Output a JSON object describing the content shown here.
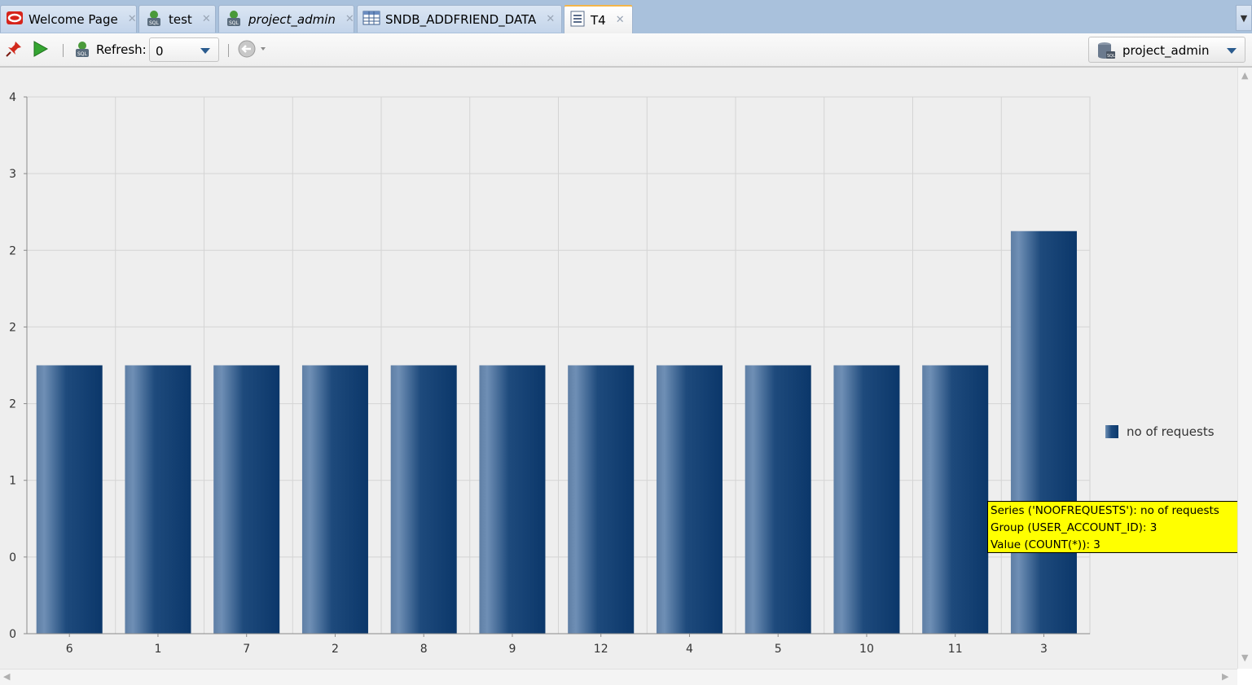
{
  "tabs": [
    {
      "label": "Welcome Page",
      "icon": "oracle-icon",
      "italic": false,
      "active": false
    },
    {
      "label": "test",
      "icon": "sql-connection-icon",
      "italic": false,
      "active": false
    },
    {
      "label": "project_admin",
      "icon": "sql-connection-icon",
      "italic": true,
      "active": false
    },
    {
      "label": "SNDB_ADDFRIEND_DATA",
      "icon": "table-grid-icon",
      "italic": false,
      "active": false
    },
    {
      "label": "T4",
      "icon": "report-icon",
      "italic": false,
      "active": true
    }
  ],
  "toolbar": {
    "refresh_label": "Refresh:",
    "refresh_value": "0",
    "connection_value": "project_admin"
  },
  "chart_data": {
    "type": "bar",
    "categories": [
      "6",
      "1",
      "7",
      "2",
      "8",
      "9",
      "12",
      "4",
      "5",
      "10",
      "11",
      "3"
    ],
    "series": [
      {
        "name": "no of requests",
        "values": [
          2,
          2,
          2,
          2,
          2,
          2,
          2,
          2,
          2,
          2,
          2,
          3
        ]
      }
    ],
    "ylim": [
      0,
      4
    ],
    "y_tick_labels": [
      "0",
      "0",
      "1",
      "2",
      "2",
      "2",
      "3",
      "4"
    ],
    "grid": true,
    "legend_position": "right",
    "bar_color": "#0c3a6c"
  },
  "tooltip": {
    "line1": "Series ('NOOFREQUESTS'): no of requests",
    "line2": "Group (USER_ACCOUNT_ID): 3",
    "line3": "Value (COUNT(*)): 3"
  }
}
